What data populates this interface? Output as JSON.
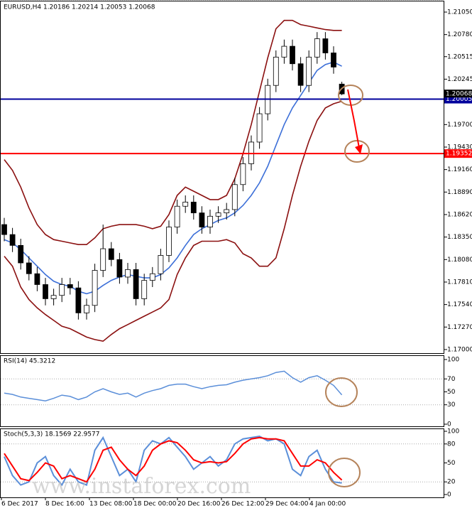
{
  "chart_data": [
    {
      "type": "candlestick",
      "title": "EURUSD,H4 1.20186 1.20214 1.20053 1.20068",
      "open": [
        1.185,
        1.1838,
        1.1825,
        1.1804,
        1.1791,
        1.1778,
        1.1761,
        1.1765,
        1.1778,
        1.1774,
        1.1744,
        1.1753,
        1.1795,
        1.1821,
        1.1808,
        1.1787,
        1.1796,
        1.1761,
        1.1783,
        1.1791,
        1.1813,
        1.1847,
        1.1872,
        1.1877,
        1.1864,
        1.1847,
        1.186,
        1.1864,
        1.1868,
        1.1898,
        1.1923,
        1.1949,
        1.1983,
        1.2017,
        1.2051,
        1.2064,
        1.2043,
        1.2017,
        1.2051,
        1.2073,
        1.2056,
        1.20186
      ],
      "high": [
        1.1858,
        1.1846,
        1.1833,
        1.1812,
        1.1799,
        1.1786,
        1.1773,
        1.1786,
        1.1786,
        1.1782,
        1.1761,
        1.1803,
        1.185,
        1.1829,
        1.1816,
        1.1804,
        1.1804,
        1.1791,
        1.1799,
        1.1821,
        1.1855,
        1.188,
        1.1885,
        1.1885,
        1.1872,
        1.1868,
        1.1872,
        1.1876,
        1.1906,
        1.1931,
        1.1957,
        1.1991,
        1.2025,
        1.2059,
        1.2072,
        1.2072,
        1.2051,
        1.2059,
        1.2081,
        1.2081,
        1.2064,
        1.20214
      ],
      "low": [
        1.183,
        1.1817,
        1.1796,
        1.1783,
        1.177,
        1.1753,
        1.1753,
        1.1757,
        1.1766,
        1.1736,
        1.1736,
        1.1745,
        1.1787,
        1.18,
        1.1779,
        1.1779,
        1.1753,
        1.1753,
        1.1775,
        1.1783,
        1.1805,
        1.1839,
        1.1864,
        1.1856,
        1.1839,
        1.1839,
        1.1852,
        1.1856,
        1.186,
        1.189,
        1.1915,
        1.1941,
        1.1975,
        1.2009,
        1.2043,
        1.2035,
        1.2009,
        1.2009,
        1.2043,
        1.2048,
        1.2031,
        1.20053
      ],
      "close": [
        1.1838,
        1.1825,
        1.1804,
        1.1791,
        1.1778,
        1.1761,
        1.1765,
        1.1778,
        1.1774,
        1.1744,
        1.1753,
        1.1795,
        1.1821,
        1.1808,
        1.1787,
        1.1796,
        1.1761,
        1.1783,
        1.1791,
        1.1813,
        1.1847,
        1.1872,
        1.1877,
        1.1864,
        1.1847,
        1.186,
        1.1864,
        1.1868,
        1.1898,
        1.1923,
        1.1949,
        1.1983,
        1.2017,
        1.2051,
        1.2064,
        1.2043,
        1.2017,
        1.2051,
        1.2073,
        1.2056,
        1.2039,
        1.20068
      ],
      "bull_color": "#ffffff",
      "bear_color": "#000000",
      "lines": [
        {
          "color": "#8b1010",
          "values": [
            1.1928,
            1.1915,
            1.1895,
            1.187,
            1.185,
            1.1838,
            1.1832,
            1.183,
            1.1828,
            1.1826,
            1.1826,
            1.1834,
            1.1845,
            1.1848,
            1.185,
            1.185,
            1.185,
            1.1848,
            1.1845,
            1.1848,
            1.1862,
            1.1885,
            1.1895,
            1.189,
            1.1885,
            1.188,
            1.188,
            1.1885,
            1.1905,
            1.1935,
            1.197,
            1.201,
            1.205,
            1.2085,
            1.2095,
            1.2095,
            1.209,
            1.2088,
            1.2086,
            1.2084,
            1.2083,
            1.2083
          ]
        },
        {
          "color": "#8b1010",
          "values": [
            1.1812,
            1.18,
            1.1775,
            1.176,
            1.175,
            1.1742,
            1.1735,
            1.1728,
            1.1725,
            1.172,
            1.1715,
            1.1712,
            1.171,
            1.1718,
            1.1725,
            1.173,
            1.1735,
            1.174,
            1.1745,
            1.175,
            1.176,
            1.179,
            1.181,
            1.1825,
            1.183,
            1.183,
            1.183,
            1.1832,
            1.1828,
            1.1815,
            1.181,
            1.18,
            1.18,
            1.181,
            1.1845,
            1.1885,
            1.192,
            1.195,
            1.1975,
            1.199,
            1.1995,
            1.1998
          ]
        },
        {
          "color": "#3c6fd8",
          "values": [
            1.1832,
            1.1828,
            1.182,
            1.181,
            1.18,
            1.179,
            1.1782,
            1.1778,
            1.1776,
            1.177,
            1.1767,
            1.177,
            1.1777,
            1.1783,
            1.1787,
            1.179,
            1.1788,
            1.1786,
            1.1786,
            1.179,
            1.1798,
            1.181,
            1.1825,
            1.1838,
            1.1845,
            1.185,
            1.1855,
            1.1858,
            1.1864,
            1.1873,
            1.1885,
            1.19,
            1.192,
            1.1945,
            1.197,
            1.199,
            1.2005,
            1.202,
            1.2035,
            1.2042,
            1.2045,
            1.204
          ]
        }
      ],
      "ylim": [
        1.16957,
        1.21178
      ],
      "yticks": [
        {
          "value": 1.2105,
          "label": "1.21050"
        },
        {
          "value": 1.2078,
          "label": "1.20780"
        },
        1.20515,
        1.20245,
        {
          "value": 1.197,
          "label": "1.19700"
        },
        {
          "value": 1.1943,
          "label": "1.19430"
        },
        {
          "value": 1.1916,
          "label": "1.19160"
        },
        {
          "value": 1.1889,
          "label": "1.18890"
        },
        {
          "value": 1.1862,
          "label": "1.18620"
        },
        {
          "value": 1.1835,
          "label": "1.18350"
        },
        {
          "value": 1.1808,
          "label": "1.18080"
        },
        {
          "value": 1.1781,
          "label": "1.17810"
        },
        {
          "value": 1.1754,
          "label": "1.17540"
        },
        {
          "value": 1.1727,
          "label": "1.17270"
        },
        {
          "value": 1.17,
          "label": "1.17000"
        }
      ],
      "levels": [
        {
          "value": 1.20005,
          "color": "#00009c"
        },
        {
          "value": 1.19352,
          "color": "#ff0000"
        }
      ],
      "current": 1.20068,
      "xtick_labels": [
        "6 Dec 2017",
        "8 Dec 16:00",
        "13 Dec 08:00",
        "18 Dec 00:00",
        "20 Dec 16:00",
        "26 Dec 12:00",
        "29 Dec 04:00",
        "4 Jan 00:00"
      ],
      "watermark": "www.instaforex.com"
    },
    {
      "type": "line",
      "title": "RSI(14) 45.3212",
      "color": "#5b8fd9",
      "values": [
        48,
        46,
        42,
        40,
        38,
        36,
        40,
        45,
        43,
        38,
        42,
        50,
        55,
        50,
        46,
        48,
        42,
        48,
        52,
        55,
        60,
        62,
        62,
        58,
        55,
        58,
        60,
        61,
        65,
        68,
        70,
        72,
        75,
        80,
        82,
        72,
        65,
        72,
        75,
        68,
        60,
        45.3212
      ],
      "ylim": [
        -3.3,
        106.6
      ],
      "yticks": [
        0,
        30,
        50,
        70,
        100
      ],
      "levels": [
        30,
        70
      ]
    },
    {
      "type": "line",
      "title": "Stoch(5,3,3) 18.1569 22.9577",
      "series": [
        {
          "color": "#5b8fd9",
          "values": [
            60,
            30,
            15,
            20,
            50,
            60,
            30,
            15,
            40,
            20,
            15,
            70,
            90,
            60,
            30,
            40,
            20,
            70,
            85,
            80,
            90,
            75,
            60,
            40,
            50,
            60,
            45,
            55,
            80,
            88,
            90,
            92,
            85,
            88,
            80,
            40,
            30,
            60,
            70,
            40,
            20,
            18.1569
          ]
        },
        {
          "color": "#ff0000",
          "values": [
            65,
            45,
            25,
            22,
            35,
            50,
            45,
            25,
            30,
            25,
            20,
            40,
            70,
            75,
            55,
            40,
            30,
            45,
            70,
            80,
            85,
            82,
            70,
            55,
            50,
            52,
            50,
            52,
            65,
            80,
            88,
            90,
            88,
            88,
            85,
            65,
            45,
            45,
            55,
            50,
            35,
            22.9577
          ]
        }
      ],
      "ylim": [
        -4.5,
        104.5
      ],
      "yticks": [
        0,
        20,
        50,
        80,
        100
      ],
      "levels": [
        20,
        80
      ]
    }
  ]
}
